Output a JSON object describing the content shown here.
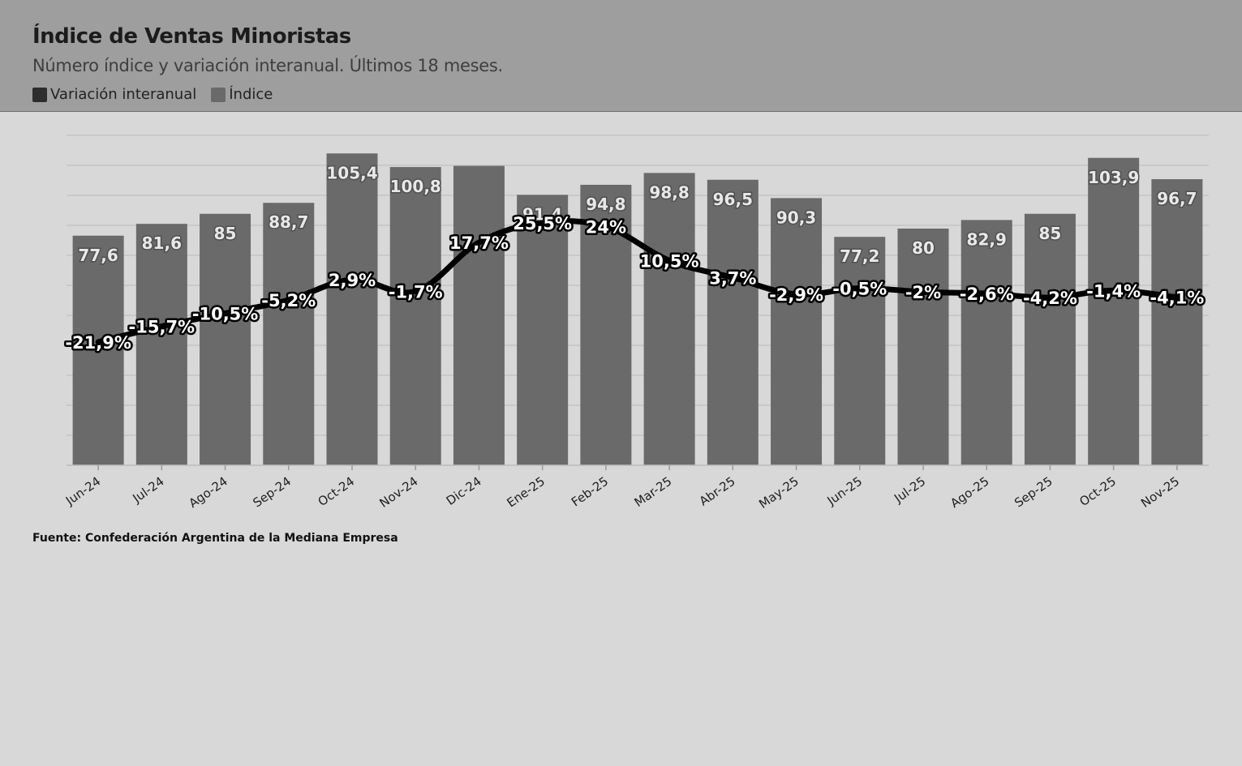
{
  "header": {
    "title": "Índice de Ventas Minoristas",
    "subtitle": "Número índice y variación interanual. Últimos 18 meses."
  },
  "legend": [
    {
      "label": "Variación interanual",
      "color": "#2d2d2d"
    },
    {
      "label": "Índice",
      "color": "#6a6a6a"
    }
  ],
  "source": "Fuente: Confederación Argentina de la Mediana Empresa",
  "colors": {
    "bar": "#6a6a6a",
    "line": "#000000",
    "grid": "#c4c4c4",
    "header_bg": "#9e9e9e",
    "plot_bg": "#d8d8d8"
  },
  "chart_data": {
    "type": "bar",
    "title": "Índice de Ventas Minoristas",
    "subtitle": "Número índice y variación interanual. Últimos 18 meses.",
    "categories": [
      "Jun-24",
      "Jul-24",
      "Ago-24",
      "Sep-24",
      "Oct-24",
      "Nov-24",
      "Dic-24",
      "Ene-25",
      "Feb-25",
      "Mar-25",
      "Abr-25",
      "May-25",
      "Jun-25",
      "Jul-25",
      "Ago-25",
      "Sep-25",
      "Oct-25",
      "Nov-25"
    ],
    "series": [
      {
        "name": "Índice",
        "type": "bar",
        "values": [
          77.6,
          81.6,
          85,
          88.7,
          105.4,
          100.8,
          101.2,
          91.4,
          94.8,
          98.8,
          96.5,
          90.3,
          77.2,
          80,
          82.9,
          85,
          103.9,
          96.7
        ],
        "labels": [
          "77,6",
          "81,6",
          "85",
          "88,7",
          "105,4",
          "100,8",
          "",
          "91,4",
          "94,8",
          "98,8",
          "96,5",
          "90,3",
          "77,2",
          "80",
          "82,9",
          "85",
          "103,9",
          "96,7"
        ]
      },
      {
        "name": "Variación interanual",
        "type": "line",
        "values": [
          -21.9,
          -15.7,
          -10.5,
          -5.2,
          2.9,
          -1.7,
          17.7,
          25.5,
          24,
          10.5,
          3.7,
          -2.9,
          -0.5,
          -2,
          -2.6,
          -4.2,
          -1.4,
          -4.1
        ],
        "labels": [
          "-21,9%",
          "-15,7%",
          "-10,5%",
          "-5,2%",
          "2,9%",
          "-1,7%",
          "17,7%",
          "25,5%",
          "24%",
          "10,5%",
          "3,7%",
          "-2,9%",
          "-0,5%",
          "-2%",
          "-2,6%",
          "-4,2%",
          "-1,4%",
          "-4,1%"
        ]
      }
    ],
    "ylim_bar": [
      0,
      110
    ],
    "ylim_line": [
      -30,
      30
    ],
    "grid": true,
    "legend_position": "top-left"
  }
}
